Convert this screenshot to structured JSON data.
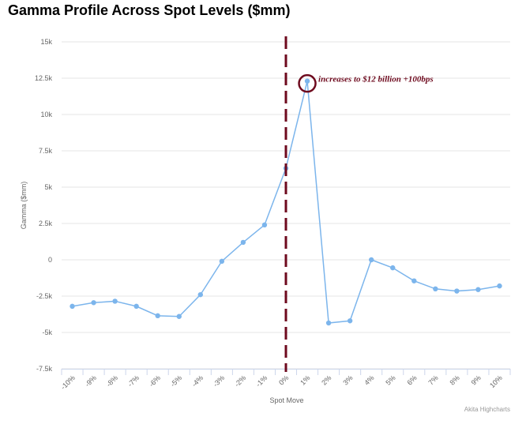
{
  "page_title": "Gamma Profile Across Spot Levels ($mm)",
  "credit": "Akita Highcharts",
  "annotation": "increases to $12 billion +100bps",
  "colors": {
    "series": "#7cb5ec",
    "marker_line": "#6e0a1e",
    "grid": "#e6e6e6",
    "axis": "#ccd6eb"
  },
  "chart_data": {
    "type": "line",
    "title": "Gamma Profile Across Spot Levels ($mm)",
    "xlabel": "Spot Move",
    "ylabel": "Gamma ($mm)",
    "categories": [
      "-10%",
      "-9%",
      "-8%",
      "-7%",
      "-6%",
      "-5%",
      "-4%",
      "-3%",
      "-2%",
      "-1%",
      "0%",
      "1%",
      "2%",
      "3%",
      "4%",
      "5%",
      "6%",
      "7%",
      "8%",
      "9%",
      "10%"
    ],
    "series": [
      {
        "values": [
          -3200,
          -2950,
          -2850,
          -3200,
          -3850,
          -3900,
          -2400,
          -100,
          1200,
          2400,
          6300,
          12300,
          -4350,
          -4200,
          0,
          -550,
          -1450,
          -2000,
          -2150,
          -2050,
          -1800
        ]
      }
    ],
    "yticks": [
      15000,
      12500,
      10000,
      7500,
      5000,
      2500,
      0,
      -2500,
      -5000,
      -7500
    ],
    "ytick_labels": [
      "15k",
      "12.5k",
      "10k",
      "7.5k",
      "5k",
      "2.5k",
      "0",
      "-2.5k",
      "-5k",
      "-7.5k"
    ],
    "ylim": [
      -7500,
      15000
    ],
    "grid": true,
    "legend": "none",
    "vertical_marker": {
      "category": "0%",
      "style": "dashed"
    },
    "highlight": {
      "category": "1%",
      "value": 12300
    }
  }
}
